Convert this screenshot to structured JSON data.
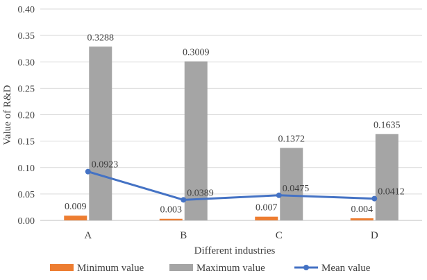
{
  "chart_data": {
    "type": "bar",
    "categories": [
      "A",
      "B",
      "C",
      "D"
    ],
    "series": [
      {
        "name": "Minimum value",
        "type": "bar",
        "color": "#ED7D31",
        "values": [
          0.009,
          0.003,
          0.007,
          0.004
        ],
        "labels": [
          "0.009",
          "0.003",
          "0.007",
          "0.004"
        ]
      },
      {
        "name": "Maximum value",
        "type": "bar",
        "color": "#A5A5A5",
        "values": [
          0.3288,
          0.3009,
          0.1372,
          0.1635
        ],
        "labels": [
          "0.3288",
          "0.3009",
          "0.1372",
          "0.1635"
        ]
      },
      {
        "name": "Mean value",
        "type": "line",
        "color": "#4472C4",
        "values": [
          0.0923,
          0.0389,
          0.0475,
          0.0412
        ],
        "labels": [
          "0.0923",
          "0.0389",
          "0.0475",
          "0.0412"
        ]
      }
    ],
    "xlabel": "Different industries",
    "ylabel": "Value of  R&D",
    "ylim": [
      0,
      0.4
    ],
    "yticks": [
      "0.00",
      "0.05",
      "0.10",
      "0.15",
      "0.20",
      "0.25",
      "0.30",
      "0.35",
      "0.40"
    ],
    "grid": true,
    "legend": "bottom"
  }
}
